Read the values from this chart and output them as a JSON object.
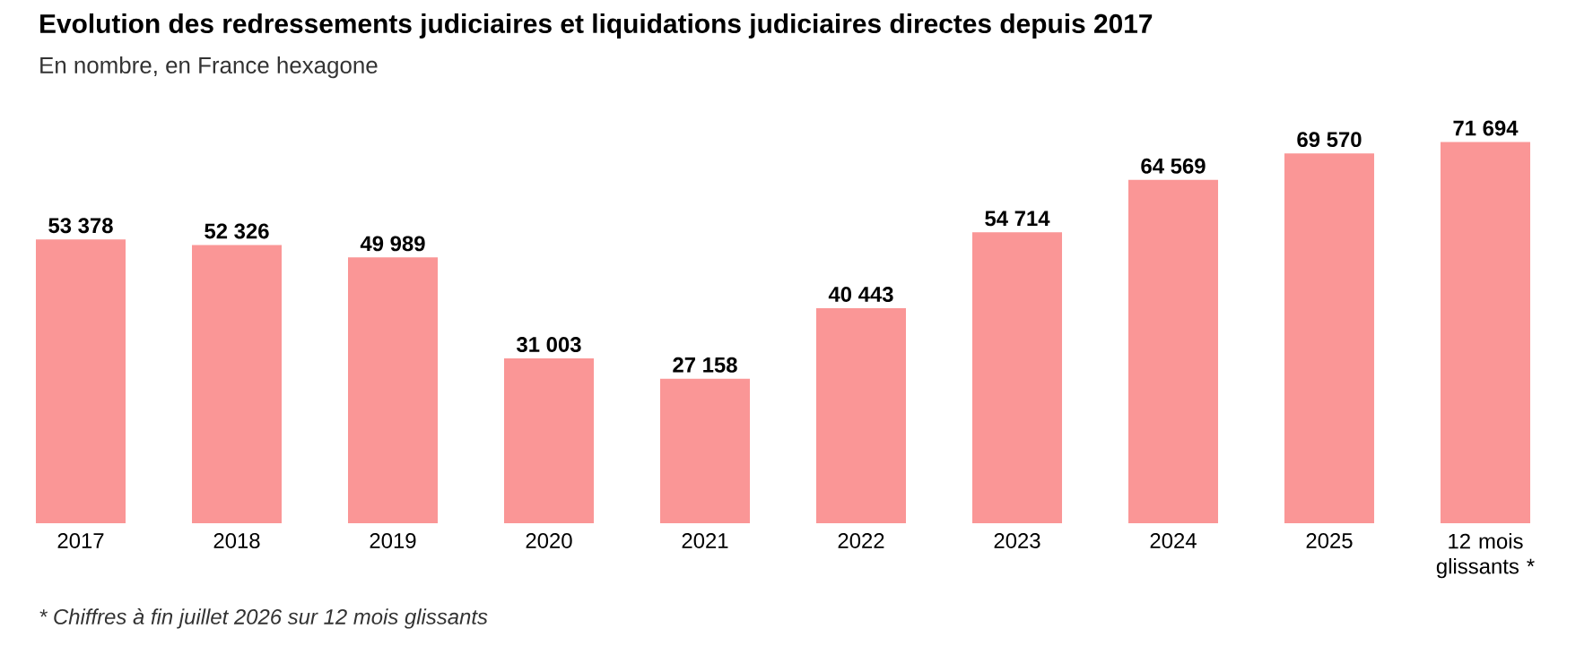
{
  "chart_data": {
    "type": "bar",
    "title": "Evolution des redressements judiciaires et liquidations judiciaires directes depuis 2017",
    "subtitle": "En nombre, en France hexagone",
    "categories": [
      "2017",
      "2018",
      "2019",
      "2020",
      "2021",
      "2022",
      "2023",
      "2024",
      "2025",
      "12 mois glissants *"
    ],
    "values": [
      53378,
      52326,
      49989,
      31003,
      27158,
      40443,
      54714,
      64569,
      69570,
      71694
    ],
    "value_labels": [
      "53 378",
      "52 326",
      "49 989",
      "31 003",
      "27 158",
      "40 443",
      "54 714",
      "64 569",
      "69 570",
      "71 694"
    ],
    "color": "#fa9696",
    "annotations": [
      "* Chiffres à fin juillet 2026 sur 12 mois glissants"
    ]
  }
}
